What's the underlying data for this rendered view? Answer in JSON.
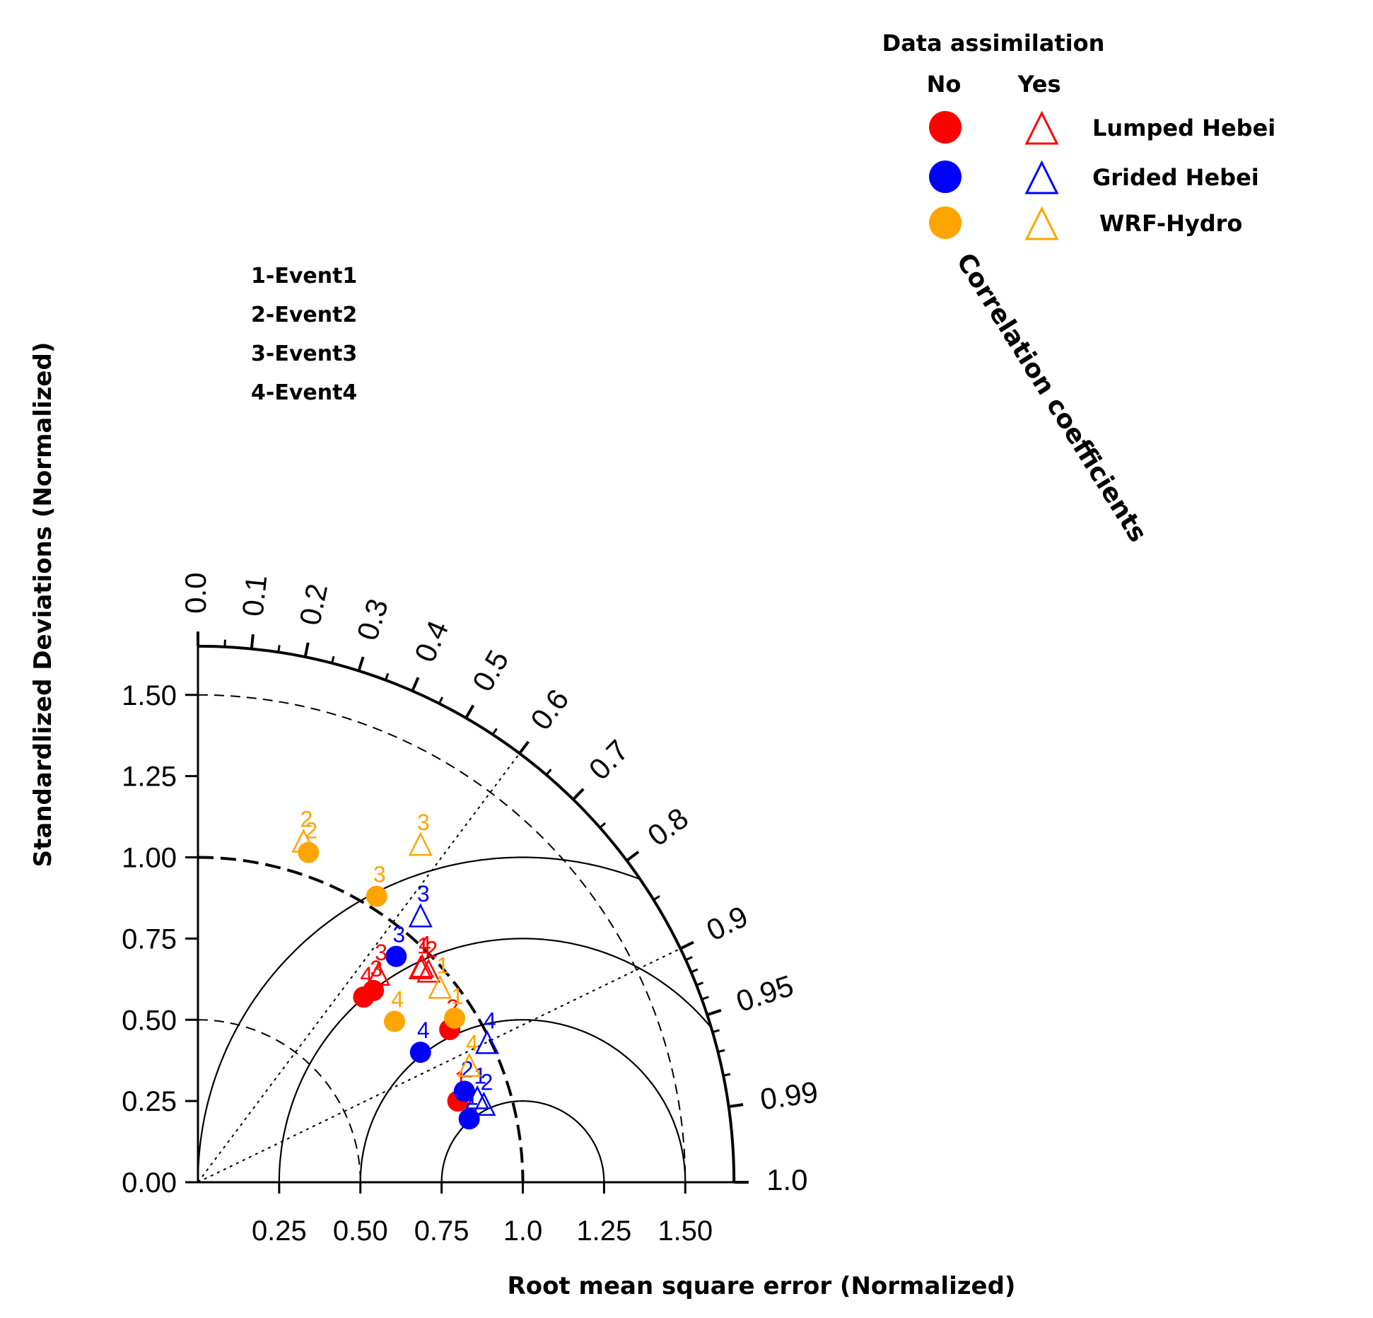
{
  "chart_data": {
    "type": "taylor-diagram",
    "ylabel": "Standardlized Deviations (Normalized)",
    "xlabel": "Root mean square error (Normalized)",
    "arc_label": "Correlation coefficients",
    "std_range": [
      0,
      1.65
    ],
    "y_ticks": [
      "0.00",
      "0.25",
      "0.50",
      "0.75",
      "1.00",
      "1.25",
      "1.50"
    ],
    "x_ticks": [
      "0.25",
      "0.50",
      "0.75",
      "1.0",
      "1.25",
      "1.50"
    ],
    "corr_ticks": [
      "0.0",
      "0.1",
      "0.2",
      "0.3",
      "0.4",
      "0.5",
      "0.6",
      "0.7",
      "0.8",
      "0.9",
      "0.95",
      "0.99",
      "1.0"
    ],
    "rmse_circles": [
      0.25,
      0.5,
      0.75,
      1.0
    ],
    "std_dashed_arcs": [
      0.5,
      1.5
    ],
    "reference_std": 1.0,
    "legend": {
      "title": "Data assimilation",
      "col_no": "No",
      "col_yes": "Yes",
      "entries": [
        {
          "name": "Lumped Hebei",
          "color": "#ff0000"
        },
        {
          "name": "Grided Hebei",
          "color": "#0000ff"
        },
        {
          "name": "WRF-Hydro",
          "color": "#ffa500"
        }
      ]
    },
    "event_key": [
      "1-Event1",
      "2-Event2",
      "3-Event3",
      "4-Event4"
    ],
    "series": [
      {
        "name": "Lumped Hebei",
        "assimilation": "No",
        "color": "#ff0000",
        "marker": "circle",
        "points": [
          {
            "label": "1",
            "x": 0.8,
            "y": 0.25
          },
          {
            "label": "2",
            "x": 0.775,
            "y": 0.47
          },
          {
            "label": "3",
            "x": 0.54,
            "y": 0.59
          },
          {
            "label": "4",
            "x": 0.51,
            "y": 0.57
          }
        ]
      },
      {
        "name": "Grided Hebei",
        "assimilation": "No",
        "color": "#0000ff",
        "marker": "circle",
        "points": [
          {
            "label": "1",
            "x": 0.835,
            "y": 0.195
          },
          {
            "label": "2",
            "x": 0.82,
            "y": 0.28
          },
          {
            "label": "3",
            "x": 0.61,
            "y": 0.695
          },
          {
            "label": "4",
            "x": 0.685,
            "y": 0.4
          }
        ]
      },
      {
        "name": "WRF-Hydro",
        "assimilation": "No",
        "color": "#ffa500",
        "marker": "circle",
        "points": [
          {
            "label": "1",
            "x": 0.79,
            "y": 0.505
          },
          {
            "label": "2",
            "x": 0.34,
            "y": 1.015
          },
          {
            "label": "3",
            "x": 0.55,
            "y": 0.88
          },
          {
            "label": "4",
            "x": 0.605,
            "y": 0.495
          }
        ]
      },
      {
        "name": "Lumped Hebei",
        "assimilation": "Yes",
        "color": "#ff0000",
        "marker": "triangle",
        "points": [
          {
            "label": "1",
            "x": 0.685,
            "y": 0.66
          },
          {
            "label": "2",
            "x": 0.71,
            "y": 0.65
          },
          {
            "label": "3",
            "x": 0.555,
            "y": 0.64
          },
          {
            "label": "4",
            "x": 0.69,
            "y": 0.665
          }
        ]
      },
      {
        "name": "Grided Hebei",
        "assimilation": "Yes",
        "color": "#0000ff",
        "marker": "triangle",
        "points": [
          {
            "label": "1",
            "x": 0.86,
            "y": 0.26
          },
          {
            "label": "2",
            "x": 0.88,
            "y": 0.24
          },
          {
            "label": "3",
            "x": 0.685,
            "y": 0.82
          },
          {
            "label": "4",
            "x": 0.89,
            "y": 0.43
          }
        ]
      },
      {
        "name": "WRF-Hydro",
        "assimilation": "Yes",
        "color": "#ffa500",
        "marker": "triangle",
        "points": [
          {
            "label": "1",
            "x": 0.745,
            "y": 0.6
          },
          {
            "label": "2",
            "x": 0.325,
            "y": 1.05
          },
          {
            "label": "3",
            "x": 0.685,
            "y": 1.04
          },
          {
            "label": "4",
            "x": 0.835,
            "y": 0.36
          }
        ]
      }
    ]
  }
}
